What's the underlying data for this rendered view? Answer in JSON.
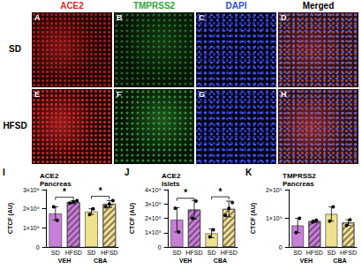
{
  "image_grid": {
    "rows": [
      "SD",
      "HFSD"
    ],
    "columns": [
      {
        "title": "ACE2",
        "color": "#e02b2b"
      },
      {
        "title": "TMPRSS2",
        "color": "#2ea836"
      },
      {
        "title": "DAPI",
        "color": "#2b4fd6"
      },
      {
        "title": "Merged",
        "color": "#000000"
      }
    ],
    "panels": [
      [
        "A",
        "B",
        "C",
        "D"
      ],
      [
        "E",
        "F",
        "G",
        "H"
      ]
    ]
  },
  "chart_data": [
    {
      "type": "bar",
      "panel": "I",
      "title": "ACE2\nPancreas",
      "y_label": "CTCF (AU)",
      "categories": [
        "VEH",
        "CBA"
      ],
      "series": [
        {
          "name": "SD",
          "colors": [
            "#c77fd8",
            "#efe28e"
          ],
          "marker": "solid",
          "values": [
            1750000000,
            1850000000
          ],
          "errors": [
            350000000,
            150000000
          ],
          "points": [
            [
              2100000000,
              1400000000
            ],
            [
              1700000000,
              2000000000
            ]
          ]
        },
        {
          "name": "HFSD",
          "colors": [
            "#c77fd8",
            "#efe28e"
          ],
          "marker": "hatch",
          "values": [
            2350000000,
            2250000000
          ],
          "errors": [
            80000000,
            180000000
          ],
          "points": [
            [
              2300000000,
              2350000000,
              2420000000
            ],
            [
              2100000000,
              2250000000,
              2420000000
            ]
          ]
        }
      ],
      "ylim": [
        0,
        3000000000
      ],
      "yticks": [
        {
          "value": 0,
          "label": "0"
        },
        {
          "value": 1000000000,
          "label": "1×10⁹"
        },
        {
          "value": 2000000000,
          "label": "2×10⁹"
        },
        {
          "value": 3000000000,
          "label": "3×10⁹"
        }
      ],
      "significance": [
        {
          "category": "VEH",
          "y": 2600000000,
          "label": "*"
        },
        {
          "category": "CBA",
          "y": 2650000000,
          "label": "*"
        }
      ]
    },
    {
      "type": "bar",
      "panel": "J",
      "title": "ACE2\nIslets",
      "y_label": "CTCF (AU)",
      "categories": [
        "VEH",
        "CBA"
      ],
      "series": [
        {
          "name": "SD",
          "colors": [
            "#c77fd8",
            "#efe28e"
          ],
          "marker": "solid",
          "values": [
            190000000,
            95000000
          ],
          "errors": [
            85000000,
            30000000
          ],
          "points": [
            [
              270000000,
              105000000
            ],
            [
              70000000,
              120000000
            ]
          ]
        },
        {
          "name": "HFSD",
          "colors": [
            "#c77fd8",
            "#efe28e"
          ],
          "marker": "hatch",
          "values": [
            260000000,
            265000000
          ],
          "errors": [
            65000000,
            55000000
          ],
          "points": [
            [
              200000000,
              320000000
            ],
            [
              220000000,
              270000000,
              310000000
            ]
          ]
        }
      ],
      "ylim": [
        0,
        400000000
      ],
      "yticks": [
        {
          "value": 0,
          "label": "0"
        },
        {
          "value": 100000000,
          "label": "1×10⁸"
        },
        {
          "value": 200000000,
          "label": "2×10⁸"
        },
        {
          "value": 300000000,
          "label": "3×10⁸"
        },
        {
          "value": 400000000,
          "label": "4×10⁸"
        }
      ],
      "significance": [
        {
          "category": "VEH",
          "y": 340000000,
          "label": "*"
        },
        {
          "category": "CBA",
          "y": 350000000,
          "label": "*"
        }
      ]
    },
    {
      "type": "bar",
      "panel": "K",
      "title": "TMPRSS2\nPancreas",
      "y_label": "CTCF (AU)",
      "categories": [
        "VEH",
        "CBA"
      ],
      "series": [
        {
          "name": "SD",
          "colors": [
            "#c77fd8",
            "#efe28e"
          ],
          "marker": "solid",
          "values": [
            750000000,
            1150000000
          ],
          "errors": [
            250000000,
            250000000
          ],
          "points": [
            [
              500000000,
              1000000000
            ],
            [
              900000000,
              1400000000
            ]
          ]
        },
        {
          "name": "HFSD",
          "colors": [
            "#c77fd8",
            "#efe28e"
          ],
          "marker": "hatch",
          "values": [
            900000000,
            850000000
          ],
          "errors": [
            40000000,
            100000000
          ],
          "points": [
            [
              870000000,
              930000000
            ],
            [
              750000000,
              950000000
            ]
          ]
        }
      ],
      "ylim": [
        0,
        2000000000
      ],
      "yticks": [
        {
          "value": 0,
          "label": "0"
        },
        {
          "value": 1000000000,
          "label": "1×10⁹"
        },
        {
          "value": 2000000000,
          "label": "2×10⁹"
        }
      ],
      "significance": []
    }
  ]
}
